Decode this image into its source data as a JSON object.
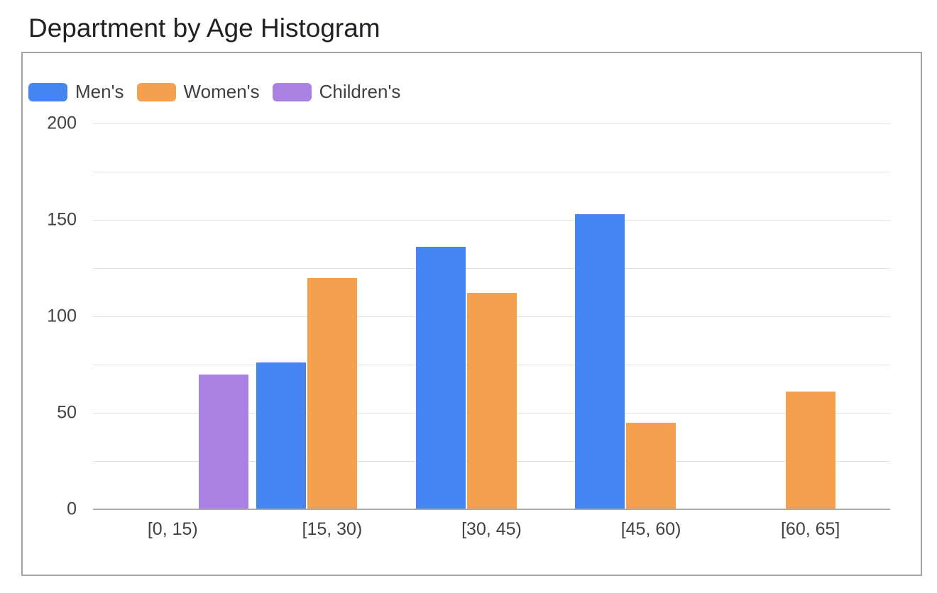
{
  "page_title": "Department by Age Histogram",
  "chart_data": {
    "type": "bar",
    "title": "Department by Age Histogram",
    "categories": [
      "[0, 15)",
      "[15, 30)",
      "[30, 45)",
      "[45, 60)",
      "[60, 65]"
    ],
    "series": [
      {
        "name": "Men's",
        "color": "#4485F2",
        "values": [
          null,
          76,
          136,
          153,
          null
        ]
      },
      {
        "name": "Women's",
        "color": "#F5A04E",
        "values": [
          null,
          120,
          112,
          45,
          61
        ]
      },
      {
        "name": "Children's",
        "color": "#AB80E3",
        "values": [
          70,
          null,
          null,
          null,
          null
        ]
      }
    ],
    "xlabel": "",
    "ylabel": "",
    "ylim": [
      0,
      200
    ],
    "yticks": [
      0,
      50,
      100,
      150,
      200
    ],
    "gridline_interval": 25,
    "grid": true,
    "legend_position": "top-left"
  },
  "colors": {
    "gridline": "#e4e4e4",
    "axis_line": "#ababab",
    "tick_text": "#424242",
    "legend_text": "#3c4043",
    "title_text": "#202124",
    "container_border": "#a3a3a3"
  }
}
